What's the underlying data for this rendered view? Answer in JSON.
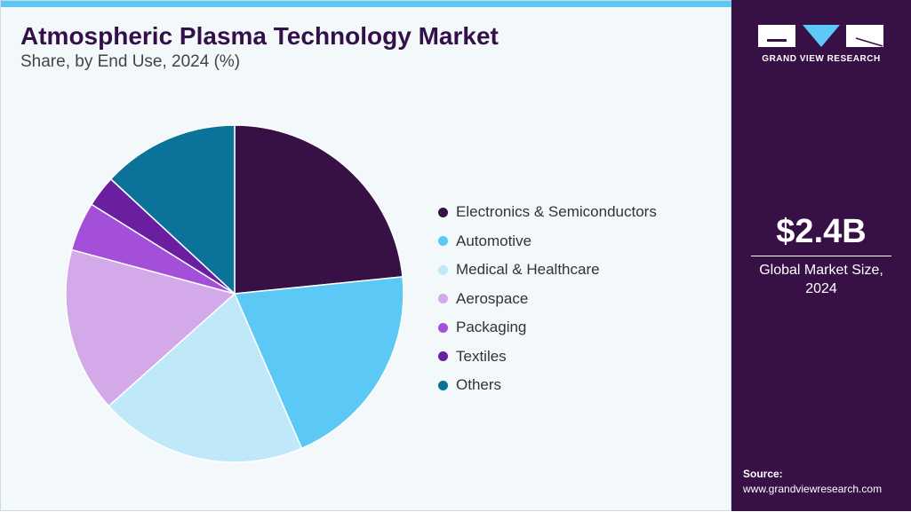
{
  "chart_data": {
    "type": "pie",
    "title": "Atmospheric Plasma Technology Market",
    "subtitle": "Share, by End Use, 2024 (%)",
    "categories": [
      "Electronics & Semiconductors",
      "Automotive",
      "Medical & Healthcare",
      "Aerospace",
      "Packaging",
      "Textiles",
      "Others"
    ],
    "values": [
      23.4,
      20.1,
      19.9,
      15.8,
      4.7,
      3.0,
      13.1
    ],
    "colors": [
      "#371046",
      "#5bc8f5",
      "#bfe9f9",
      "#d4a9ea",
      "#a34fd9",
      "#6a1fa0",
      "#0b7399"
    ],
    "legend_position": "right"
  },
  "sidebar": {
    "logo_text": "GRAND VIEW RESEARCH",
    "market_size": "$2.4B",
    "market_caption_1": "Global Market Size,",
    "market_caption_2": "2024",
    "source_label": "Source:",
    "source_url": "www.grandviewresearch.com"
  }
}
